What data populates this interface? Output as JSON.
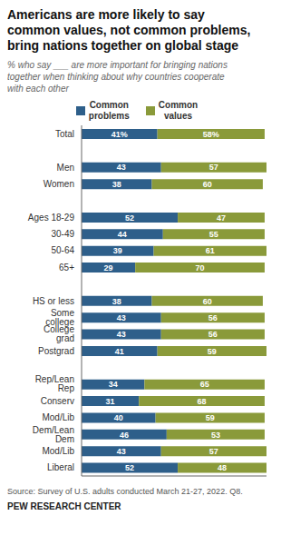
{
  "chart_data": {
    "type": "bar",
    "orientation": "horizontal",
    "stacked": true,
    "data_labels": true,
    "tick_labels": "y",
    "legend": "top",
    "title": "Americans are more likely to say\ncommon values, not common problems,\nbring nations together on global stage",
    "subtitle": "% who say ___ are more important for bringing nations\ntogether when thinking about why countries cooperate\nwith each other",
    "annotations": [
      "Source: Survey of U.S. adults conducted March 21-27, 2022. Q8.",
      "PEW RESEARCH CENTER"
    ],
    "categories": [
      "Total",
      null,
      "Men",
      "Women",
      null,
      "Ages 18-29",
      "30-49",
      "50-64",
      "65+",
      null,
      "HS or less",
      "Some college",
      "College grad",
      "Postgrad",
      null,
      "Rep/Lean Rep",
      "Conserv",
      "Mod/Lib",
      "Dem/Lean Dem",
      "Mod/Lib",
      "Liberal"
    ],
    "xlim": [
      0,
      100
    ],
    "series": [
      {
        "name": "Common\nproblems",
        "color": "#2E5F8A",
        "values": [
          41,
          null,
          43,
          38,
          null,
          52,
          44,
          39,
          29,
          null,
          38,
          43,
          43,
          41,
          null,
          34,
          31,
          40,
          46,
          43,
          52
        ],
        "value_labels": [
          "41%",
          null,
          "43",
          "38",
          null,
          "52",
          "44",
          "39",
          "29",
          null,
          "38",
          "43",
          "43",
          "41",
          null,
          "34",
          "31",
          "40",
          "46",
          "43",
          "52"
        ]
      },
      {
        "name": "Common\nvalues",
        "color": "#8A9A3A",
        "values": [
          58,
          null,
          57,
          60,
          null,
          47,
          55,
          61,
          70,
          null,
          60,
          56,
          56,
          59,
          null,
          65,
          68,
          59,
          53,
          57,
          48
        ],
        "value_labels": [
          "58%",
          null,
          "57",
          "60",
          null,
          "47",
          "55",
          "61",
          "70",
          null,
          "60",
          "56",
          "56",
          "59",
          null,
          "65",
          "68",
          "59",
          "53",
          "57",
          "48"
        ]
      }
    ]
  }
}
